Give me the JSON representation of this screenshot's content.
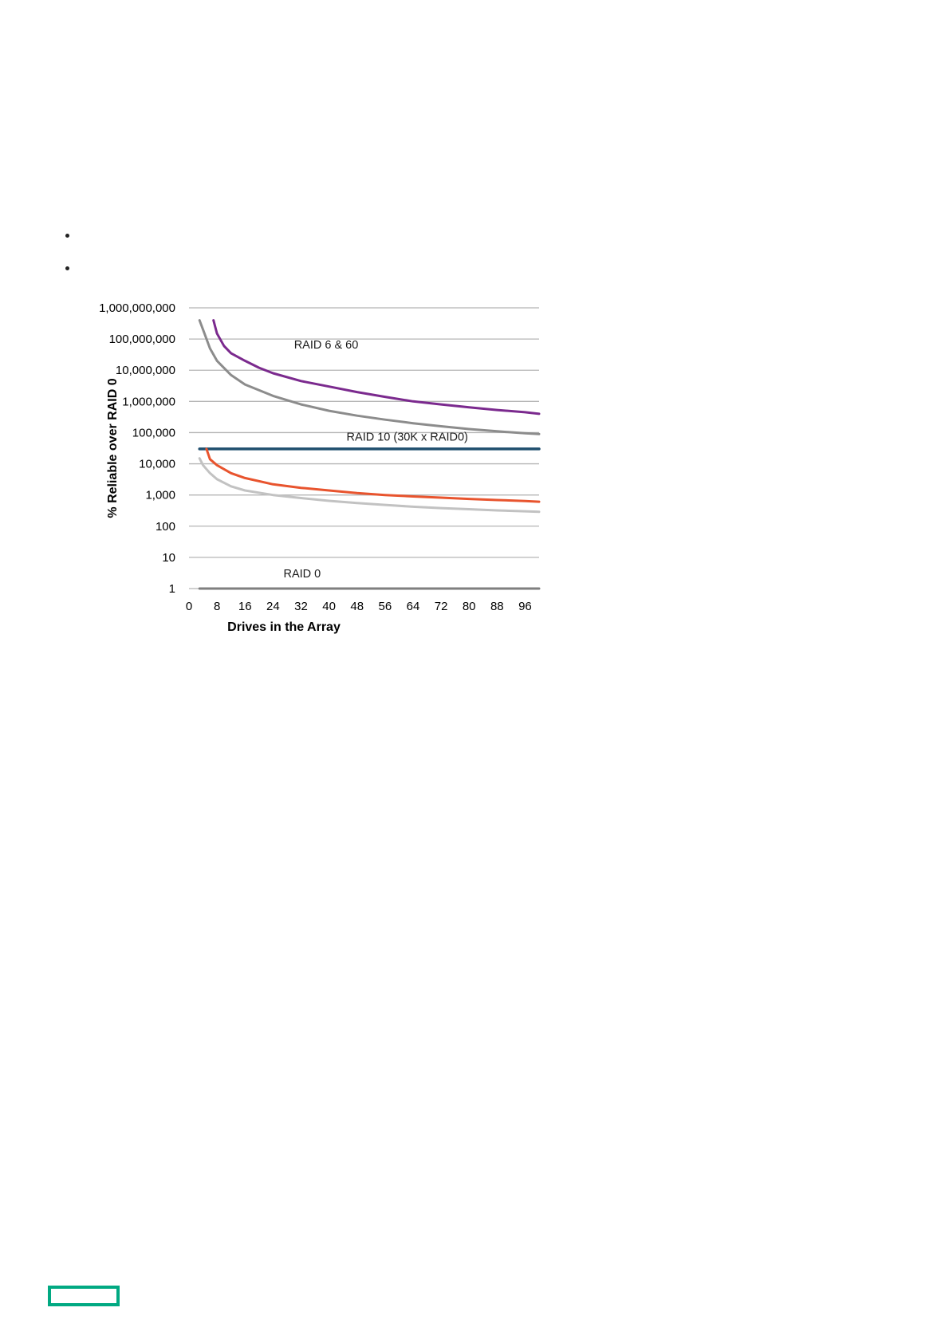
{
  "chart_data": {
    "type": "line",
    "title": "",
    "xlabel": "Drives in the Array",
    "ylabel": "% Reliable over RAID 0",
    "yscale": "log",
    "xlim": [
      0,
      100
    ],
    "ylim": [
      1,
      1000000000
    ],
    "xticks": [
      0,
      8,
      16,
      24,
      32,
      40,
      48,
      56,
      64,
      72,
      80,
      88,
      96
    ],
    "yticks": [
      1,
      10,
      100,
      1000,
      10000,
      100000,
      1000000,
      10000000,
      100000000,
      1000000000
    ],
    "ytick_labels": [
      "1",
      "10",
      "100",
      "1,000",
      "10,000",
      "100,000",
      "1,000,000",
      "10,000,000",
      "100,000,000",
      "1,000,000,000"
    ],
    "grid": "horizontal",
    "legend": "none",
    "series": [
      {
        "key": "purple",
        "name": "RAID 6 & 60",
        "color": "#7b2a8e",
        "x": [
          7,
          8,
          10,
          12,
          16,
          20,
          24,
          32,
          40,
          48,
          56,
          64,
          72,
          80,
          88,
          96,
          100
        ],
        "y": [
          400000000,
          150000000,
          60000000,
          35000000,
          20000000,
          12000000,
          8000000,
          4500000,
          3000000,
          2000000,
          1400000,
          1000000,
          800000,
          650000,
          530000,
          450000,
          400000
        ]
      },
      {
        "key": "dark_gray",
        "name": "",
        "color": "#8c8c8c",
        "x": [
          3,
          4,
          6,
          8,
          12,
          16,
          24,
          32,
          40,
          48,
          56,
          64,
          72,
          80,
          88,
          96,
          100
        ],
        "y": [
          400000000,
          200000000,
          50000000,
          20000000,
          7000000,
          3500000,
          1500000,
          800000,
          500000,
          350000,
          260000,
          200000,
          160000,
          130000,
          110000,
          95000,
          90000
        ]
      },
      {
        "key": "navy",
        "name": "RAID 10 (30K x RAID0)",
        "color": "#1f4e6e",
        "x": [
          3,
          100
        ],
        "y": [
          30000,
          30000
        ]
      },
      {
        "key": "orange",
        "name": "",
        "color": "#e8542e",
        "x": [
          5,
          6,
          8,
          12,
          16,
          24,
          32,
          40,
          48,
          56,
          64,
          72,
          80,
          88,
          96,
          100
        ],
        "y": [
          30000,
          14000,
          9000,
          5000,
          3500,
          2200,
          1700,
          1400,
          1150,
          1000,
          900,
          820,
          750,
          690,
          640,
          610
        ]
      },
      {
        "key": "light_gray",
        "name": "",
        "color": "#c2c2c2",
        "x": [
          3,
          4,
          6,
          8,
          12,
          16,
          24,
          32,
          40,
          48,
          56,
          64,
          72,
          80,
          88,
          96,
          100
        ],
        "y": [
          15000,
          9000,
          5000,
          3200,
          1900,
          1400,
          1000,
          800,
          650,
          550,
          480,
          420,
          380,
          350,
          320,
          300,
          290
        ]
      },
      {
        "key": "raid0",
        "name": "RAID 0",
        "color": "#7f7f7f",
        "x": [
          3,
          100
        ],
        "y": [
          1,
          1
        ]
      }
    ],
    "annotations": [
      {
        "text": "RAID 6 & 60",
        "x": 30,
        "y": 50000000
      },
      {
        "text": "RAID 10 (30K x RAID0)",
        "x": 45,
        "y": 55000
      },
      {
        "text": "RAID 0",
        "x": 27,
        "y": 2.3
      }
    ]
  }
}
